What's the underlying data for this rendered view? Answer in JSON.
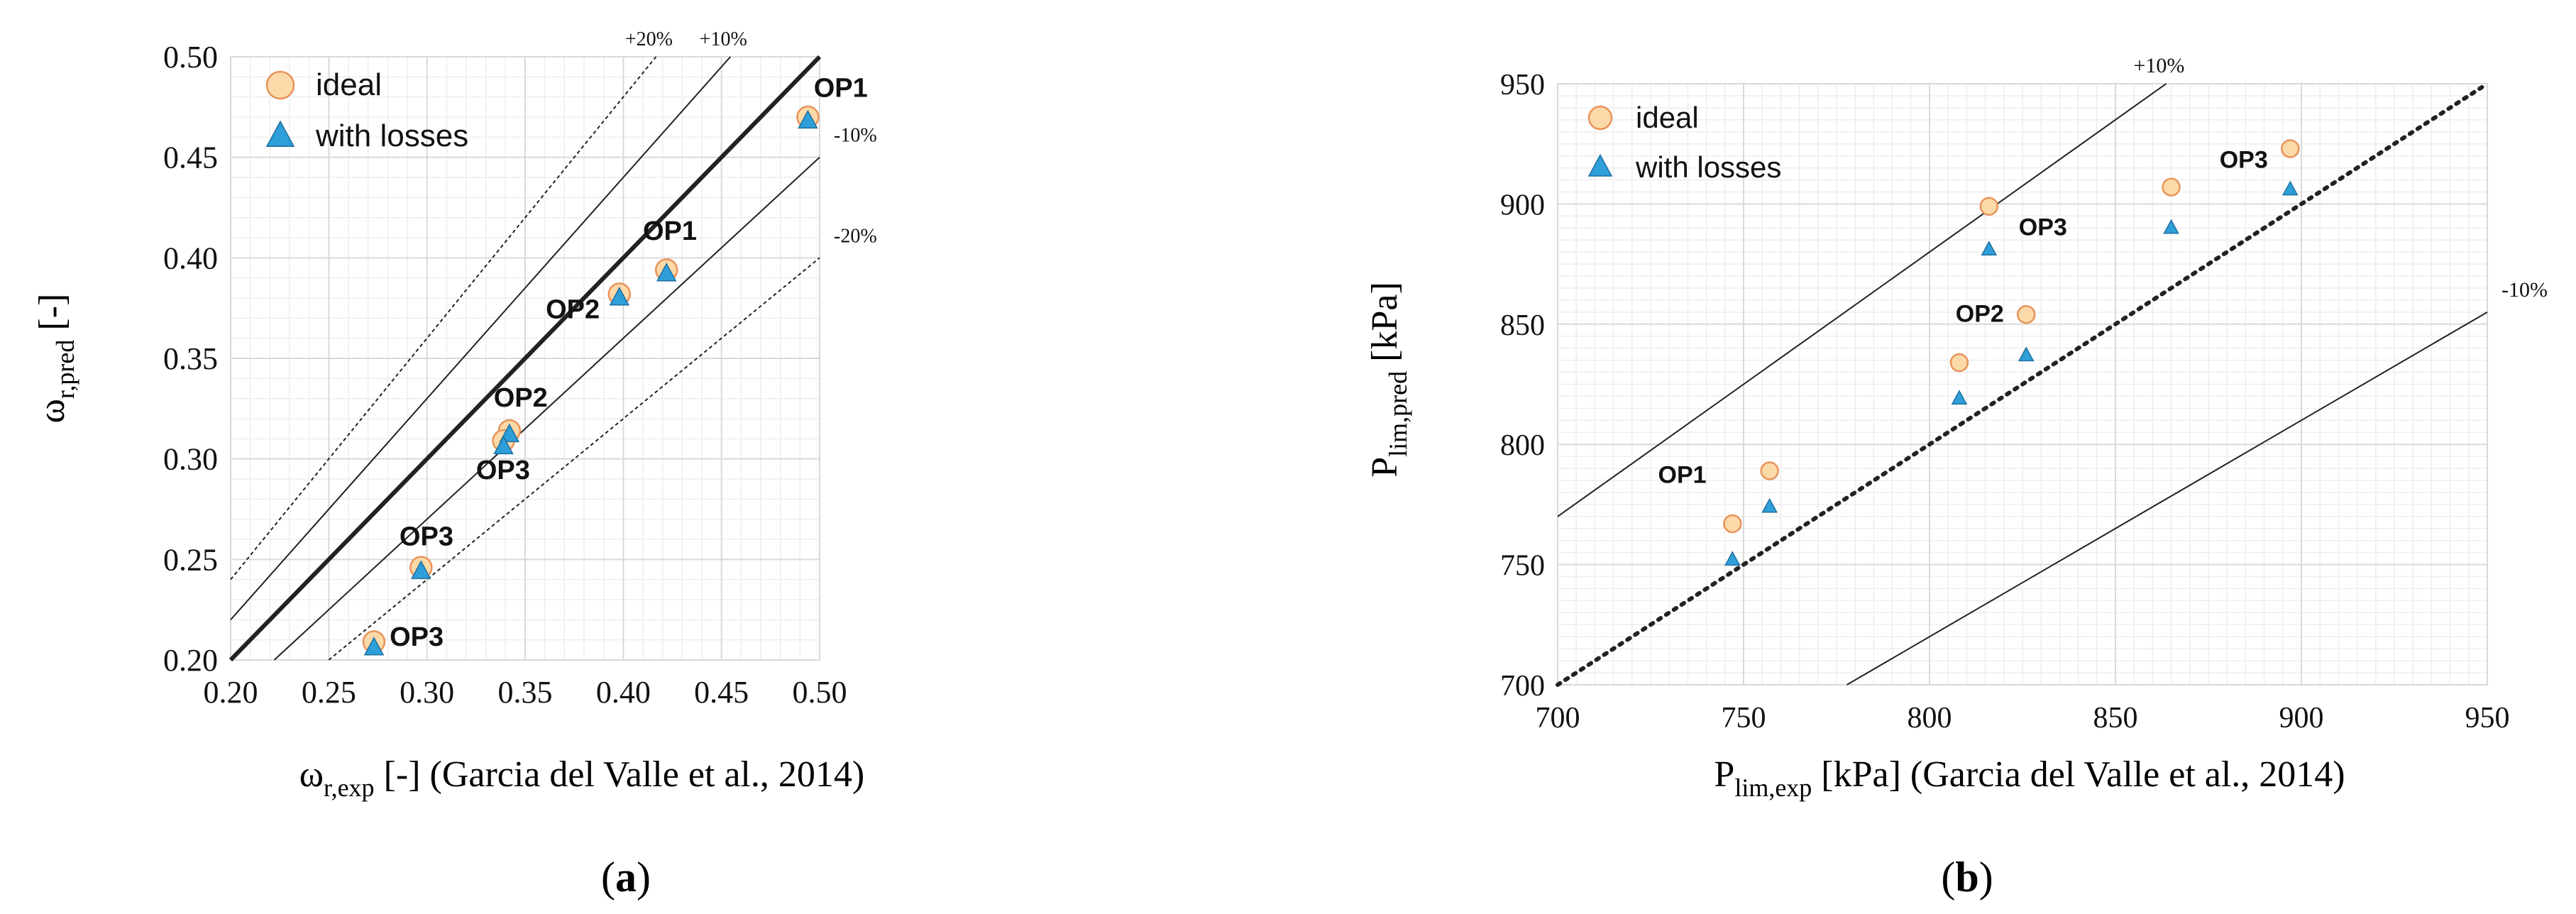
{
  "chart_data": [
    {
      "type": "scatter",
      "panel_label": "a",
      "xlabel_main": "ω",
      "xlabel_sub": "r,exp",
      "xlabel_rest": " [-] (Garcia del Valle et al., 2014)",
      "ylabel_main": "ω",
      "ylabel_sub": "r,pred",
      "ylabel_rest": " [-]",
      "xlim": [
        0.2,
        0.5
      ],
      "ylim": [
        0.2,
        0.5
      ],
      "xticks": [
        "0.20",
        "0.25",
        "0.30",
        "0.35",
        "0.40",
        "0.45",
        "0.50"
      ],
      "yticks": [
        "0.20",
        "0.25",
        "0.30",
        "0.35",
        "0.40",
        "0.45",
        "0.50"
      ],
      "grid": true,
      "legend": [
        "ideal",
        "with losses"
      ],
      "legend_position": "top-left",
      "reference_lines": [
        {
          "label": "+20%",
          "factor": 1.2,
          "style": "dotted"
        },
        {
          "label": "+10%",
          "factor": 1.1,
          "style": "solid"
        },
        {
          "label": "",
          "factor": 1.0,
          "style": "bold"
        },
        {
          "label": "-10%",
          "factor": 0.9,
          "style": "solid"
        },
        {
          "label": "-20%",
          "factor": 0.8,
          "style": "dotted"
        }
      ],
      "series": [
        {
          "name": "ideal",
          "x": [
            0.494,
            0.422,
            0.398,
            0.342,
            0.339,
            0.297,
            0.273
          ],
          "y": [
            0.47,
            0.394,
            0.382,
            0.314,
            0.309,
            0.246,
            0.209
          ]
        },
        {
          "name": "with losses",
          "x": [
            0.494,
            0.422,
            0.398,
            0.342,
            0.339,
            0.297,
            0.273
          ],
          "y": [
            0.468,
            0.392,
            0.38,
            0.312,
            0.306,
            0.244,
            0.206
          ]
        }
      ],
      "annotations": [
        {
          "text": "OP1",
          "x": 0.497,
          "y": 0.48,
          "anchor": "start"
        },
        {
          "text": "OP1",
          "x": 0.41,
          "y": 0.409,
          "anchor": "start"
        },
        {
          "text": "OP2",
          "x": 0.388,
          "y": 0.37,
          "anchor": "end"
        },
        {
          "text": "OP2",
          "x": 0.334,
          "y": 0.326,
          "anchor": "start"
        },
        {
          "text": "OP3",
          "x": 0.325,
          "y": 0.29,
          "anchor": "start"
        },
        {
          "text": "OP3",
          "x": 0.286,
          "y": 0.257,
          "anchor": "start"
        },
        {
          "text": "OP3",
          "x": 0.281,
          "y": 0.207,
          "anchor": "start"
        }
      ]
    },
    {
      "type": "scatter",
      "panel_label": "b",
      "xlabel_main": "P",
      "xlabel_sub": "lim,exp",
      "xlabel_rest": " [kPa] (Garcia del Valle et al., 2014)",
      "ylabel_main": "P",
      "ylabel_sub": "lim,pred",
      "ylabel_rest": " [kPa]",
      "xlim": [
        700,
        950
      ],
      "ylim": [
        700,
        950
      ],
      "xticks": [
        "700",
        "750",
        "800",
        "850",
        "900",
        "950"
      ],
      "yticks": [
        "700",
        "750",
        "800",
        "850",
        "900",
        "950"
      ],
      "grid": true,
      "legend": [
        "ideal",
        "with losses"
      ],
      "legend_position": "top-left",
      "reference_lines": [
        {
          "label": "+10%",
          "factor": 1.1,
          "style": "solid"
        },
        {
          "label": "",
          "factor": 1.0,
          "style": "dotted-bold"
        },
        {
          "label": "-10%",
          "factor": 0.9,
          "style": "solid"
        }
      ],
      "series": [
        {
          "name": "ideal",
          "x": [
            747,
            757,
            808,
            826,
            816,
            865,
            897
          ],
          "y": [
            767,
            789,
            834,
            854,
            899,
            907,
            923
          ]
        },
        {
          "name": "with losses",
          "x": [
            747,
            757,
            808,
            826,
            816,
            865,
            897
          ],
          "y": [
            752,
            774,
            819,
            837,
            881,
            890,
            906
          ]
        }
      ],
      "annotations": [
        {
          "text": "OP1",
          "x": 740,
          "y": 784,
          "anchor": "end"
        },
        {
          "text": "OP2",
          "x": 820,
          "y": 851,
          "anchor": "end"
        },
        {
          "text": "OP3",
          "x": 824,
          "y": 887,
          "anchor": "start"
        },
        {
          "text": "OP3",
          "x": 878,
          "y": 915,
          "anchor": "start"
        }
      ]
    }
  ],
  "colors": {
    "ideal_fill": "#fcd9a8",
    "ideal_stroke": "#e8945a",
    "losses_fill": "#2e9fd8",
    "losses_stroke": "#1e6fa0",
    "grid": "#d9d9d9",
    "axis": "#808080"
  }
}
